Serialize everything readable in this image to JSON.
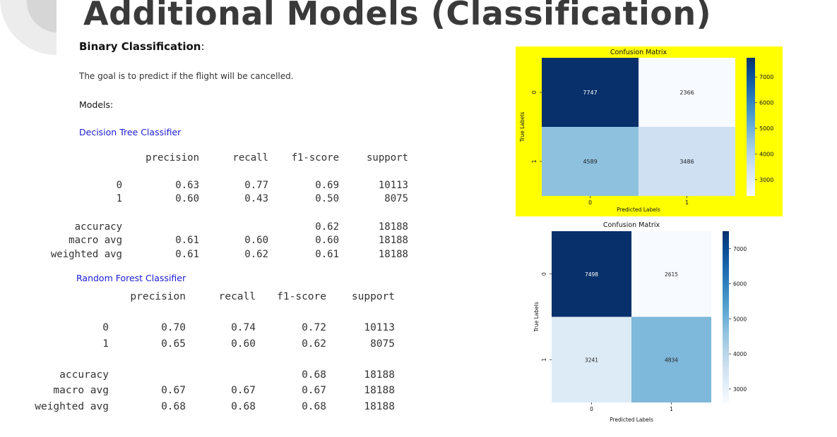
{
  "title": "Additional Models (Classification)",
  "binary_heading": "Binary Classification",
  "binary_colon": ":",
  "goal_text": "The goal is to predict if the flight will be cancelled.",
  "models_label": "Models:",
  "decision_tree": {
    "label": "Decision Tree Classifier",
    "headers": [
      "precision",
      "recall",
      "f1-score",
      "support"
    ],
    "rows": [
      {
        "label": "0",
        "precision": "0.63",
        "recall": "0.77",
        "f1": "0.69",
        "support": "10113"
      },
      {
        "label": "1",
        "precision": "0.60",
        "recall": "0.43",
        "f1": "0.50",
        "support": "8075"
      },
      {
        "label": "accuracy",
        "precision": "",
        "recall": "",
        "f1": "0.62",
        "support": "18188"
      },
      {
        "label": "macro avg",
        "precision": "0.61",
        "recall": "0.60",
        "f1": "0.60",
        "support": "18188"
      },
      {
        "label": "weighted avg",
        "precision": "0.61",
        "recall": "0.62",
        "f1": "0.61",
        "support": "18188"
      }
    ]
  },
  "random_forest": {
    "label": "Random Forest Classifier",
    "headers": [
      "precision",
      "recall",
      "f1-score",
      "support"
    ],
    "rows": [
      {
        "label": "0",
        "precision": "0.70",
        "recall": "0.74",
        "f1": "0.72",
        "support": "10113"
      },
      {
        "label": "1",
        "precision": "0.65",
        "recall": "0.60",
        "f1": "0.62",
        "support": "8075"
      },
      {
        "label": "accuracy",
        "precision": "",
        "recall": "",
        "f1": "0.68",
        "support": "18188"
      },
      {
        "label": "macro avg",
        "precision": "0.67",
        "recall": "0.67",
        "f1": "0.67",
        "support": "18188"
      },
      {
        "label": "weighted avg",
        "precision": "0.68",
        "recall": "0.68",
        "f1": "0.68",
        "support": "18188"
      }
    ]
  },
  "chart_data": [
    {
      "type": "heatmap",
      "title": "Confusion Matrix",
      "xlabel": "Predicted Labels",
      "ylabel": "True Labels",
      "x_ticks": [
        "0",
        "1"
      ],
      "y_ticks": [
        "0",
        "1"
      ],
      "values": [
        [
          7747,
          2366
        ],
        [
          4589,
          3486
        ]
      ],
      "colorbar_ticks": [
        3000,
        4000,
        5000,
        6000,
        7000
      ],
      "colorbar_range": [
        2366,
        7747
      ],
      "colormap": "Blues",
      "background": "#ffff00"
    },
    {
      "type": "heatmap",
      "title": "Confusion Matrix",
      "xlabel": "Predicted Labels",
      "ylabel": "True Labels",
      "x_ticks": [
        "0",
        "1"
      ],
      "y_ticks": [
        "0",
        "1"
      ],
      "values": [
        [
          7498,
          2615
        ],
        [
          3241,
          4834
        ]
      ],
      "colorbar_ticks": [
        3000,
        4000,
        5000,
        6000,
        7000
      ],
      "colorbar_range": [
        2615,
        7498
      ],
      "colormap": "Blues",
      "background": "#ffffff"
    }
  ]
}
